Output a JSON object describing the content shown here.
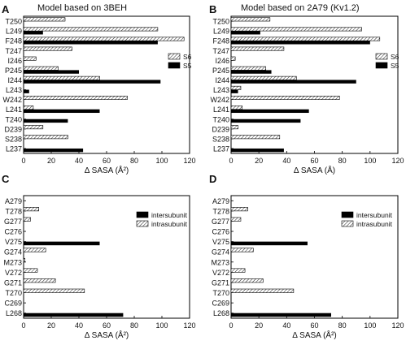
{
  "chart_data": [
    {
      "panel": "A",
      "type": "bar",
      "orientation": "horizontal",
      "title": "Model based on 3BEH",
      "xlabel": "Δ SASA (Å²)",
      "xlim": [
        0,
        120
      ],
      "xticks": [
        0,
        20,
        40,
        60,
        80,
        100,
        120
      ],
      "categories": [
        "T250",
        "L249",
        "F248",
        "T247",
        "I246",
        "P245",
        "I244",
        "L243",
        "W242",
        "L241",
        "T240",
        "D239",
        "S238",
        "L237"
      ],
      "series": [
        {
          "name": "S6",
          "pattern": "hatch",
          "values": [
            30,
            97,
            116,
            35,
            9,
            25,
            55,
            0,
            75,
            7,
            0,
            14,
            32,
            0
          ]
        },
        {
          "name": "S5",
          "pattern": "solid",
          "values": [
            0,
            14,
            97,
            0,
            0,
            40,
            99,
            4,
            0,
            55,
            32,
            0,
            0,
            43
          ]
        }
      ],
      "legend": "right"
    },
    {
      "panel": "B",
      "type": "bar",
      "orientation": "horizontal",
      "title": "Model based on 2A79 (Kv1.2)",
      "xlabel": "Δ SASA (Å)",
      "xlim": [
        0,
        120
      ],
      "xticks": [
        0,
        20,
        40,
        60,
        80,
        100,
        120
      ],
      "categories": [
        "T250",
        "L249",
        "F248",
        "T247",
        "I246",
        "P245",
        "I244",
        "L243",
        "W242",
        "L241",
        "T240",
        "D239",
        "S238",
        "L237"
      ],
      "series": [
        {
          "name": "S6",
          "pattern": "hatch",
          "values": [
            28,
            94,
            107,
            38,
            3,
            25,
            47,
            7,
            78,
            8,
            0,
            5,
            35,
            0
          ]
        },
        {
          "name": "S5",
          "pattern": "solid",
          "values": [
            0,
            21,
            100,
            0,
            0,
            29,
            90,
            5,
            0,
            56,
            50,
            0,
            0,
            38
          ]
        }
      ],
      "legend": "right"
    },
    {
      "panel": "C",
      "type": "bar",
      "orientation": "horizontal",
      "xlabel": "Δ SASA (Å²)",
      "xlim": [
        0,
        120
      ],
      "xticks": [
        0,
        20,
        40,
        60,
        80,
        100,
        120
      ],
      "categories": [
        "A279",
        "T278",
        "G277",
        "C276",
        "V275",
        "G274",
        "M273",
        "V272",
        "G271",
        "T270",
        "C269",
        "L268"
      ],
      "series": [
        {
          "name": "intersubunit",
          "pattern": "solid",
          "values": [
            0,
            0,
            0,
            0,
            55,
            0,
            0,
            0,
            0,
            0,
            0,
            72
          ]
        },
        {
          "name": "intrasubunit",
          "pattern": "hatch",
          "values": [
            0,
            11,
            5,
            0,
            0,
            16,
            1,
            10,
            23,
            44,
            0,
            0
          ]
        }
      ],
      "legend": "right"
    },
    {
      "panel": "D",
      "type": "bar",
      "orientation": "horizontal",
      "xlabel": "Δ SASA (Å²)",
      "xlim": [
        0,
        120
      ],
      "xticks": [
        0,
        20,
        40,
        60,
        80,
        100,
        120
      ],
      "categories": [
        "A279",
        "T278",
        "G277",
        "C276",
        "V275",
        "G274",
        "M273",
        "V272",
        "G271",
        "T270",
        "C269",
        "L268"
      ],
      "series": [
        {
          "name": "intersubunit",
          "pattern": "solid",
          "values": [
            0,
            0,
            0,
            0,
            55,
            0,
            0,
            0,
            0,
            0,
            0,
            72
          ]
        },
        {
          "name": "intrasubunit",
          "pattern": "hatch",
          "values": [
            0,
            12,
            7,
            0,
            0,
            16,
            0,
            10,
            23,
            45,
            0,
            0
          ]
        }
      ],
      "legend": "right"
    }
  ]
}
